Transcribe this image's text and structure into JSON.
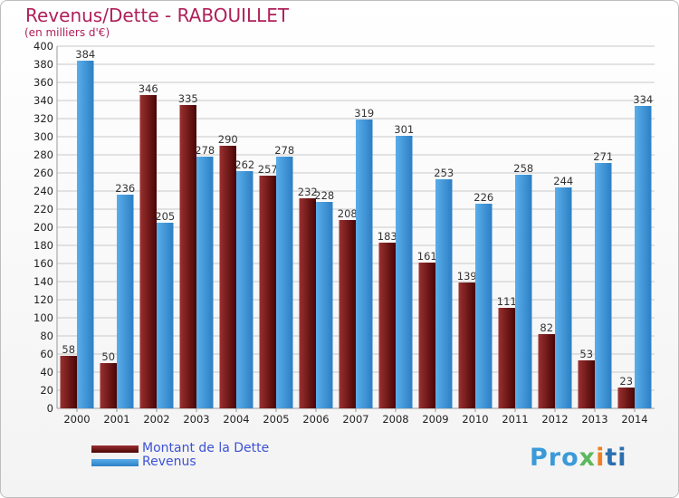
{
  "header": {
    "title": "Revenus/Dette - RABOUILLET",
    "subtitle": "(en milliers d'€)"
  },
  "legend": {
    "items": [
      {
        "label": "Montant de la Dette",
        "color": "#7a1d1d"
      },
      {
        "label": "Revenus",
        "color": "#49a0e3"
      }
    ]
  },
  "logo": {
    "part1": "Pro",
    "part2": "x",
    "part3": "i",
    "part4": "ti"
  },
  "colors": {
    "debt_light": "#9a3030",
    "debt_dark": "#4a0505",
    "rev_light": "#5aaeea",
    "rev_dark": "#2c7fc4",
    "grid": "#c8c8c8",
    "axis_text": "#222222",
    "label_text": "#333333"
  },
  "chart_data": {
    "type": "bar",
    "title": "Revenus/Dette - RABOUILLET",
    "subtitle": "(en milliers d'€)",
    "xlabel": "",
    "ylabel": "",
    "ylim": [
      0,
      400
    ],
    "yticks": [
      0,
      20,
      40,
      60,
      80,
      100,
      120,
      140,
      160,
      180,
      200,
      220,
      240,
      260,
      280,
      300,
      320,
      340,
      360,
      380,
      400
    ],
    "categories": [
      "2000",
      "2001",
      "2002",
      "2003",
      "2004",
      "2005",
      "2006",
      "2007",
      "2008",
      "2009",
      "2010",
      "2011",
      "2012",
      "2013",
      "2014"
    ],
    "series": [
      {
        "name": "Montant de la Dette",
        "values": [
          58,
          50,
          346,
          335,
          290,
          257,
          232,
          208,
          183,
          161,
          139,
          111,
          82,
          53,
          23
        ]
      },
      {
        "name": "Revenus",
        "values": [
          384,
          236,
          205,
          278,
          262,
          278,
          228,
          319,
          301,
          253,
          226,
          258,
          244,
          271,
          334
        ]
      }
    ],
    "grid": true,
    "legend_position": "bottom-left"
  }
}
